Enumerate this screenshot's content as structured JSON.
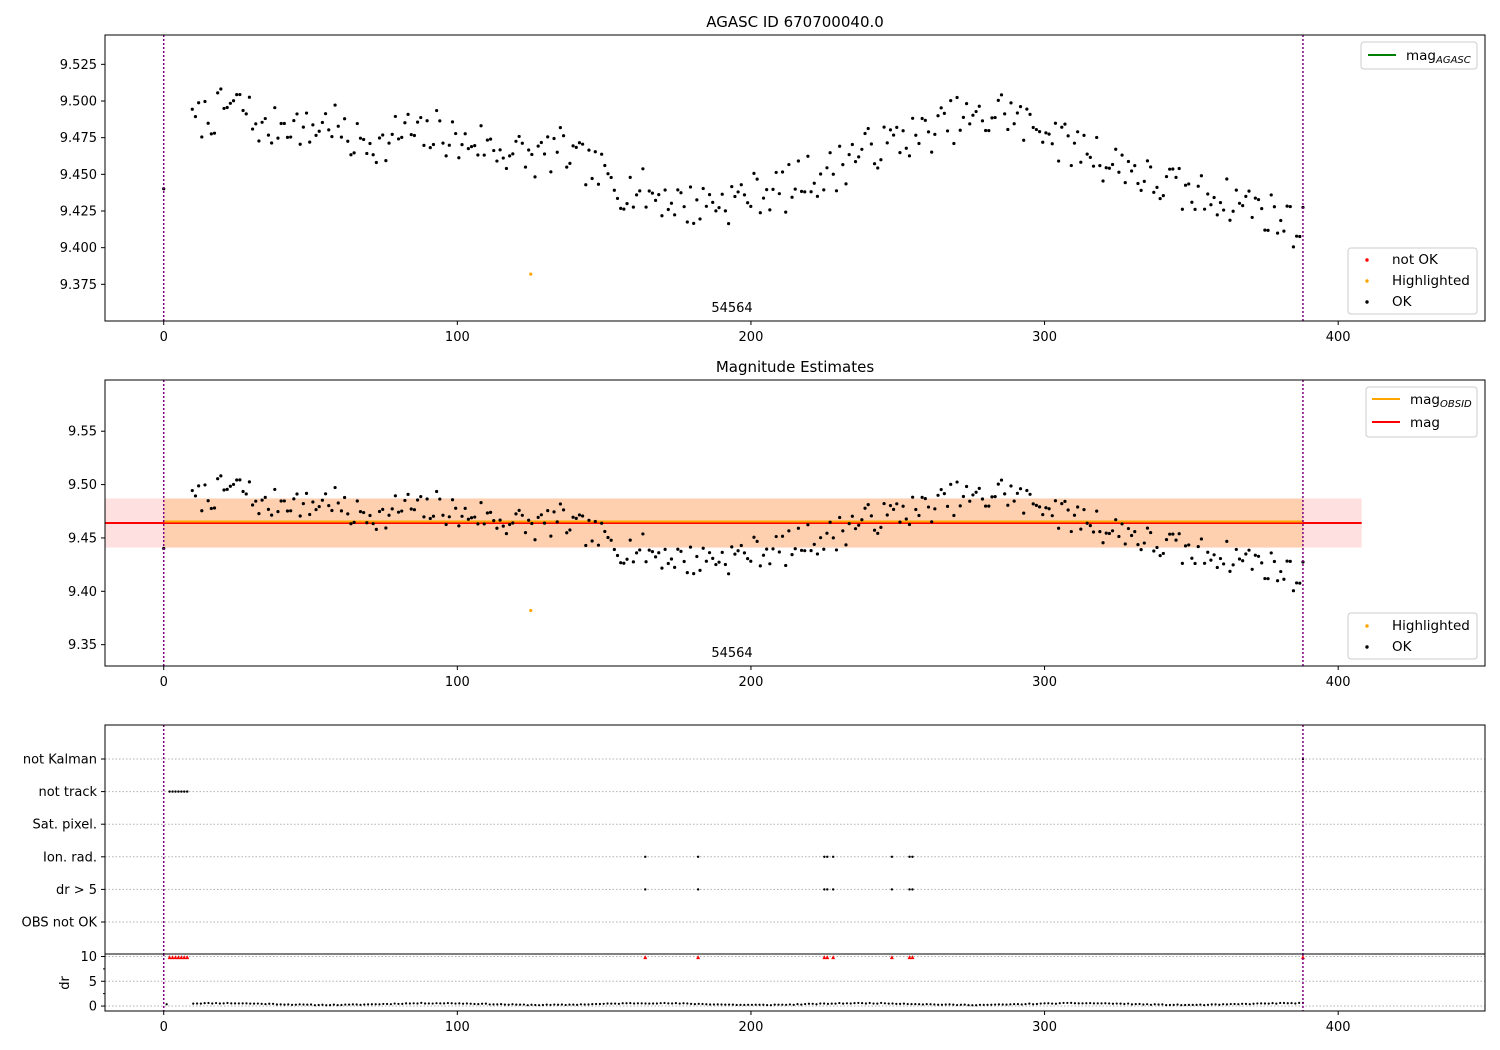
{
  "chart_data": [
    {
      "type": "scatter",
      "title": "AGASC ID 670700040.0",
      "annotation": "54564",
      "xlim": [
        -20,
        450
      ],
      "ylim": [
        9.35,
        9.545
      ],
      "xticks": [
        0,
        100,
        200,
        300,
        400
      ],
      "yticks": [
        9.375,
        9.4,
        9.425,
        9.45,
        9.475,
        9.5,
        9.525
      ],
      "ytick_labels": [
        "9.375",
        "9.400",
        "9.425",
        "9.450",
        "9.475",
        "9.500",
        "9.525"
      ],
      "vlines": [
        0,
        388
      ],
      "legend_lines": [
        {
          "label": "mag",
          "sub": "AGASC",
          "color": "#008000"
        }
      ],
      "legend_points": [
        {
          "label": "not OK",
          "color": "#ff0000"
        },
        {
          "label": "Highlighted",
          "color": "#ffa500"
        },
        {
          "label": "OK",
          "color": "#000000"
        }
      ],
      "highlighted": [
        {
          "x": 125,
          "y": 9.382
        }
      ],
      "series": {
        "x_start": 0,
        "x_end": 388,
        "n": 360,
        "y": [
          9.448,
          9.45,
          9.478,
          9.482,
          9.486,
          9.489,
          9.491,
          9.494,
          9.497,
          9.496,
          9.492,
          9.485,
          9.478,
          9.481,
          9.486,
          9.487,
          9.483,
          9.479,
          9.481,
          9.485,
          9.486,
          9.479,
          9.473,
          9.472,
          9.474,
          9.473,
          9.469,
          9.47,
          9.478,
          9.481,
          9.477,
          9.475,
          9.477,
          9.48,
          9.476,
          9.47,
          9.47,
          9.474,
          9.472,
          9.468,
          9.466,
          9.466,
          9.465,
          9.463,
          9.461,
          9.462,
          9.465,
          9.467,
          9.464,
          9.459,
          9.457,
          9.455,
          9.451,
          9.446,
          9.443,
          9.441,
          9.44,
          9.439,
          9.437,
          9.435,
          9.434,
          9.432,
          9.43,
          9.429,
          9.43,
          9.432,
          9.432,
          9.431,
          9.433,
          9.435,
          9.437,
          9.438,
          9.439,
          9.439,
          9.439,
          9.442,
          9.446,
          9.449,
          9.449,
          9.449,
          9.452,
          9.458,
          9.463,
          9.465,
          9.467,
          9.469,
          9.469,
          9.471,
          9.475,
          9.476,
          9.475,
          9.477,
          9.48,
          9.483,
          9.486,
          9.488,
          9.487,
          9.486,
          9.487,
          9.492,
          9.494,
          9.492,
          9.487,
          9.483,
          9.483,
          9.484,
          9.479,
          9.472,
          9.47,
          9.468,
          9.468,
          9.466,
          9.46,
          9.457,
          9.457,
          9.457,
          9.453,
          9.447,
          9.444,
          9.443,
          9.443,
          9.44,
          9.437,
          9.435,
          9.436,
          9.437,
          9.436,
          9.433,
          9.431,
          9.432,
          9.43,
          9.426,
          9.423,
          9.421,
          9.418,
          9.415,
          9.414
        ],
        "jitter_seed": 7
      }
    },
    {
      "type": "scatter",
      "title": "Magnitude Estimates",
      "annotation": "54564",
      "xlim": [
        -20,
        450
      ],
      "ylim": [
        9.33,
        9.598
      ],
      "xticks": [
        0,
        100,
        200,
        300,
        400
      ],
      "yticks": [
        9.35,
        9.4,
        9.45,
        9.5,
        9.55
      ],
      "ytick_labels": [
        "9.35",
        "9.40",
        "9.45",
        "9.50",
        "9.55"
      ],
      "vlines": [
        0,
        388
      ],
      "mag_line": 9.464,
      "band_outer": [
        9.441,
        9.487
      ],
      "band_inner": [
        9.441,
        9.487
      ],
      "band_x_end": 408,
      "legend_lines": [
        {
          "label": "mag",
          "sub": "OBSID",
          "color": "#ffa500"
        },
        {
          "label": "mag",
          "sub": "",
          "color": "#ff0000"
        }
      ],
      "legend_points": [
        {
          "label": "Highlighted",
          "color": "#ffa500"
        },
        {
          "label": "OK",
          "color": "#000000"
        }
      ],
      "highlighted": [
        {
          "x": 125,
          "y": 9.382
        }
      ]
    },
    {
      "type": "scatter",
      "xlim": [
        -20,
        450
      ],
      "xticks": [
        0,
        100,
        200,
        300,
        400
      ],
      "flag_labels": [
        "not Kalman",
        "not track",
        "Sat. pixel.",
        "Ion. rad.",
        "dr > 5",
        "OBS not OK"
      ],
      "vlines": [
        0,
        388
      ],
      "not_track_x": [
        2,
        3,
        4,
        5,
        6,
        7,
        8
      ],
      "not_kalman_x": [
        388
      ],
      "ion_rad_x": [
        164,
        182,
        225,
        226,
        228,
        248,
        254,
        255
      ],
      "dr5_x": [
        164,
        182,
        225,
        226,
        228,
        248,
        254,
        255
      ],
      "dr_ylabel": "dr",
      "dr_yticks": [
        0,
        5,
        10
      ],
      "dr_ylim": [
        -1,
        10.5
      ],
      "dr_high_x": [
        2,
        3,
        4,
        5,
        6,
        7,
        8,
        164,
        182,
        225,
        226,
        228,
        248,
        254,
        255,
        388
      ],
      "dr_high_value": 9.8
    }
  ]
}
